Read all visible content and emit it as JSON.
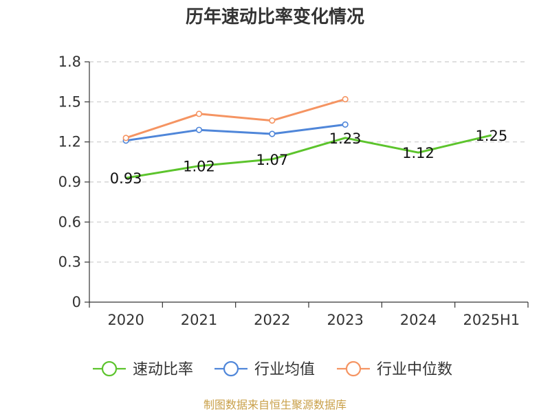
{
  "chart_data": {
    "type": "line",
    "title": "历年速动比率变化情况",
    "categories": [
      "2020",
      "2021",
      "2022",
      "2023",
      "2024",
      "2025H1"
    ],
    "ylim": [
      0,
      1.8
    ],
    "yticks": [
      "0",
      "0.3",
      "0.6",
      "0.9",
      "1.2",
      "1.5",
      "1.8"
    ],
    "grid": true,
    "legend_position": "bottom",
    "series": [
      {
        "name": "速动比率",
        "color": "#5cc42c",
        "values": [
          0.93,
          1.02,
          1.07,
          1.23,
          1.12,
          1.25
        ],
        "labels": [
          "0.93",
          "1.02",
          "1.07",
          "1.23",
          "1.12",
          "1.25"
        ],
        "markers": false
      },
      {
        "name": "行业均值",
        "color": "#4f86d9",
        "values": [
          1.21,
          1.29,
          1.26,
          1.33,
          null,
          null
        ],
        "markers": true
      },
      {
        "name": "行业中位数",
        "color": "#f59462",
        "values": [
          1.23,
          1.41,
          1.36,
          1.52,
          null,
          null
        ],
        "markers": true
      }
    ]
  },
  "footer": {
    "source": "制图数据来自恒生聚源数据库"
  }
}
